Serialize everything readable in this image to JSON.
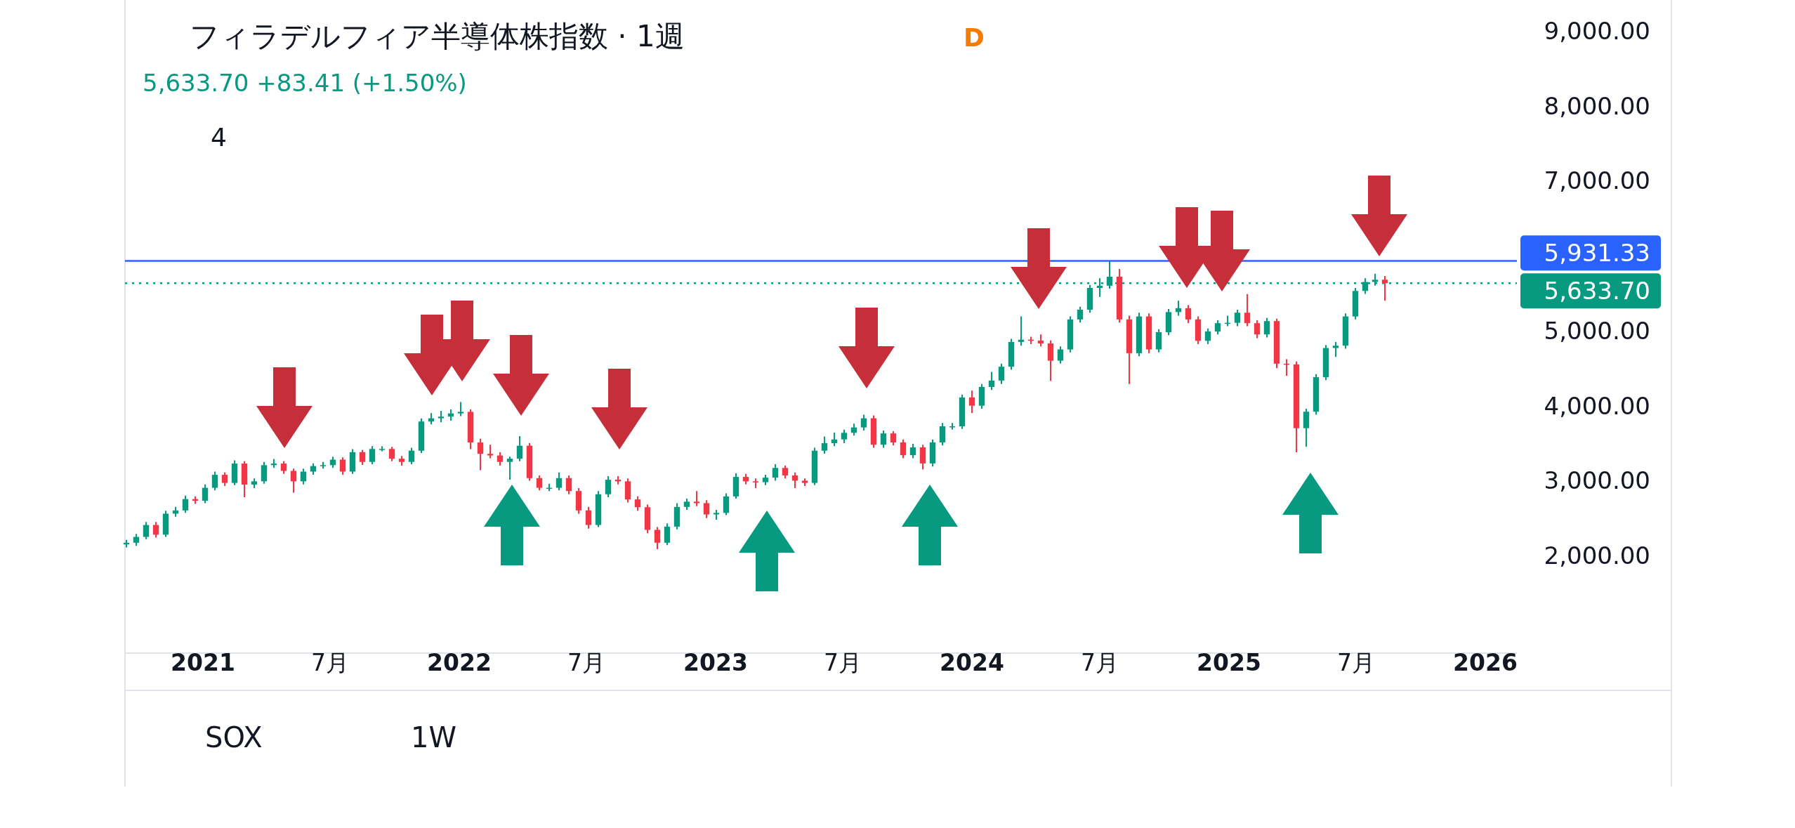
{
  "chart_data": {
    "type": "candlestick",
    "title": "フィラデルフィア半導体株指数 · 1週",
    "subtitle": "5,633.70 +83.41 (+1.50%)",
    "annotations": [
      "4",
      "D",
      "SOX",
      "1W"
    ],
    "x": [
      "2020-09-14",
      "2020-09-28",
      "2020-10-12",
      "2020-10-26",
      "2020-11-09",
      "2020-11-23",
      "2020-12-07",
      "2020-12-21",
      "2021-01-04",
      "2021-01-18",
      "2021-02-01",
      "2021-02-15",
      "2021-03-01",
      "2021-03-15",
      "2021-03-29",
      "2021-04-12",
      "2021-04-26",
      "2021-05-10",
      "2021-05-24",
      "2021-06-07",
      "2021-06-21",
      "2021-07-05",
      "2021-07-19",
      "2021-08-02",
      "2021-08-16",
      "2021-08-30",
      "2021-09-13",
      "2021-09-27",
      "2021-10-11",
      "2021-10-25",
      "2021-11-08",
      "2021-11-22",
      "2021-12-06",
      "2021-12-20",
      "2022-01-03",
      "2022-01-17",
      "2022-01-31",
      "2022-02-14",
      "2022-02-28",
      "2022-03-14",
      "2022-03-28",
      "2022-04-11",
      "2022-04-25",
      "2022-05-09",
      "2022-05-23",
      "2022-06-06",
      "2022-06-20",
      "2022-07-04",
      "2022-07-18",
      "2022-08-01",
      "2022-08-15",
      "2022-08-29",
      "2022-09-12",
      "2022-09-26",
      "2022-10-10",
      "2022-10-24",
      "2022-11-07",
      "2022-11-21",
      "2022-12-05",
      "2022-12-19",
      "2023-01-02",
      "2023-01-16",
      "2023-01-30",
      "2023-02-13",
      "2023-02-27",
      "2023-03-13",
      "2023-03-27",
      "2023-04-10",
      "2023-04-24",
      "2023-05-08",
      "2023-05-22",
      "2023-06-05",
      "2023-06-19",
      "2023-07-03",
      "2023-07-17",
      "2023-07-31",
      "2023-08-14",
      "2023-08-28",
      "2023-09-11",
      "2023-09-25",
      "2023-10-09",
      "2023-10-23",
      "2023-11-06",
      "2023-11-20",
      "2023-12-04",
      "2023-12-18",
      "2024-01-01",
      "2024-01-15",
      "2024-01-29",
      "2024-02-12",
      "2024-02-26",
      "2024-03-11",
      "2024-03-25",
      "2024-04-08",
      "2024-04-22",
      "2024-05-06",
      "2024-05-20",
      "2024-06-03",
      "2024-06-17",
      "2024-07-01",
      "2024-07-15",
      "2024-07-29",
      "2024-08-12",
      "2024-08-26",
      "2024-09-09",
      "2024-09-23",
      "2024-10-07",
      "2024-10-21",
      "2024-11-04",
      "2024-11-18",
      "2024-12-02",
      "2024-12-16",
      "2024-12-30",
      "2025-01-13",
      "2025-01-27",
      "2025-02-10",
      "2025-02-24",
      "2025-03-10",
      "2025-03-24",
      "2025-04-07",
      "2025-04-21",
      "2025-05-05",
      "2025-05-19",
      "2025-06-02",
      "2025-06-16",
      "2025-06-30",
      "2025-07-14",
      "2025-07-28",
      "2025-08-11"
    ],
    "ohlc": [
      [
        2150,
        2210,
        2110,
        2172
      ],
      [
        2172,
        2290,
        2130,
        2250
      ],
      [
        2250,
        2450,
        2220,
        2409
      ],
      [
        2409,
        2450,
        2240,
        2280
      ],
      [
        2280,
        2600,
        2250,
        2560
      ],
      [
        2560,
        2650,
        2520,
        2603
      ],
      [
        2603,
        2800,
        2570,
        2754
      ],
      [
        2754,
        2790,
        2690,
        2732
      ],
      [
        2732,
        2950,
        2700,
        2905
      ],
      [
        2905,
        3120,
        2870,
        3078
      ],
      [
        3078,
        3110,
        2930,
        2970
      ],
      [
        2970,
        3270,
        2940,
        3228
      ],
      [
        3228,
        3260,
        2780,
        2948
      ],
      [
        2948,
        3030,
        2900,
        2991
      ],
      [
        2991,
        3250,
        2960,
        3207
      ],
      [
        3207,
        3290,
        3170,
        3228
      ],
      [
        3228,
        3260,
        3090,
        3130
      ],
      [
        3130,
        3160,
        2840,
        2991
      ],
      [
        2991,
        3160,
        2950,
        3121
      ],
      [
        3121,
        3230,
        3080,
        3195
      ],
      [
        3195,
        3250,
        3160,
        3207
      ],
      [
        3207,
        3320,
        3170,
        3280
      ],
      [
        3280,
        3310,
        3080,
        3121
      ],
      [
        3121,
        3420,
        3090,
        3380
      ],
      [
        3380,
        3410,
        3210,
        3250
      ],
      [
        3250,
        3460,
        3220,
        3423
      ],
      [
        3423,
        3460,
        3390,
        3423
      ],
      [
        3423,
        3450,
        3260,
        3293
      ],
      [
        3293,
        3330,
        3200,
        3250
      ],
      [
        3250,
        3440,
        3220,
        3400
      ],
      [
        3400,
        3830,
        3370,
        3789
      ],
      [
        3789,
        3900,
        3750,
        3832
      ],
      [
        3832,
        3930,
        3780,
        3854
      ],
      [
        3854,
        3950,
        3800,
        3897
      ],
      [
        3897,
        4048,
        3860,
        3918
      ],
      [
        3918,
        3950,
        3420,
        3509
      ],
      [
        3509,
        3560,
        3140,
        3358
      ],
      [
        3358,
        3480,
        3300,
        3336
      ],
      [
        3336,
        3380,
        3200,
        3250
      ],
      [
        3250,
        3320,
        3013,
        3293
      ],
      [
        3293,
        3595,
        3260,
        3466
      ],
      [
        3466,
        3500,
        3000,
        3034
      ],
      [
        3034,
        3070,
        2870,
        2905
      ],
      [
        2905,
        2960,
        2860,
        2905
      ],
      [
        2905,
        3110,
        2870,
        3034
      ],
      [
        3034,
        3070,
        2820,
        2862
      ],
      [
        2862,
        2900,
        2560,
        2603
      ],
      [
        2603,
        2650,
        2360,
        2409
      ],
      [
        2409,
        2860,
        2380,
        2819
      ],
      [
        2819,
        3060,
        2780,
        3013
      ],
      [
        3013,
        3060,
        2950,
        2991
      ],
      [
        2991,
        3030,
        2710,
        2750
      ],
      [
        2750,
        2790,
        2600,
        2646
      ],
      [
        2646,
        2680,
        2300,
        2344
      ],
      [
        2344,
        2380,
        2085,
        2172
      ],
      [
        2172,
        2430,
        2140,
        2387
      ],
      [
        2387,
        2700,
        2350,
        2650
      ],
      [
        2650,
        2760,
        2610,
        2720
      ],
      [
        2720,
        2860,
        2660,
        2700
      ],
      [
        2700,
        2740,
        2500,
        2550
      ],
      [
        2550,
        2610,
        2480,
        2570
      ],
      [
        2570,
        2830,
        2540,
        2790
      ],
      [
        2790,
        3100,
        2760,
        3050
      ],
      [
        3050,
        3090,
        2950,
        2991
      ],
      [
        2991,
        3030,
        2900,
        2980
      ],
      [
        2980,
        3080,
        2940,
        3040
      ],
      [
        3040,
        3220,
        3000,
        3170
      ],
      [
        3170,
        3200,
        3030,
        3070
      ],
      [
        3070,
        3110,
        2900,
        3000
      ],
      [
        3000,
        3030,
        2930,
        2970
      ],
      [
        2970,
        3440,
        2940,
        3400
      ],
      [
        3400,
        3590,
        3360,
        3500
      ],
      [
        3500,
        3640,
        3460,
        3550
      ],
      [
        3550,
        3680,
        3500,
        3638
      ],
      [
        3638,
        3760,
        3600,
        3710
      ],
      [
        3710,
        3880,
        3670,
        3832
      ],
      [
        3832,
        3870,
        3440,
        3480
      ],
      [
        3480,
        3670,
        3440,
        3630
      ],
      [
        3630,
        3660,
        3470,
        3510
      ],
      [
        3510,
        3550,
        3300,
        3340
      ],
      [
        3340,
        3490,
        3300,
        3444
      ],
      [
        3444,
        3480,
        3150,
        3230
      ],
      [
        3230,
        3550,
        3190,
        3510
      ],
      [
        3510,
        3770,
        3470,
        3725
      ],
      [
        3725,
        3770,
        3680,
        3725
      ],
      [
        3725,
        4150,
        3690,
        4110
      ],
      [
        4110,
        4200,
        3900,
        4000
      ],
      [
        4000,
        4290,
        3960,
        4250
      ],
      [
        4250,
        4450,
        4210,
        4335
      ],
      [
        4335,
        4560,
        4290,
        4520
      ],
      [
        4520,
        4890,
        4480,
        4850
      ],
      [
        4850,
        5191,
        4800,
        4880
      ],
      [
        4880,
        4920,
        4820,
        4868
      ],
      [
        4868,
        4950,
        4790,
        4830
      ],
      [
        4830,
        4870,
        4329,
        4600
      ],
      [
        4600,
        4790,
        4560,
        4750
      ],
      [
        4750,
        5190,
        4710,
        5150
      ],
      [
        5150,
        5320,
        5110,
        5280
      ],
      [
        5280,
        5610,
        5240,
        5570
      ],
      [
        5570,
        5700,
        5450,
        5600
      ],
      [
        5600,
        5931,
        5560,
        5720
      ],
      [
        5720,
        5824,
        5110,
        5150
      ],
      [
        5150,
        5200,
        4290,
        4700
      ],
      [
        4700,
        5240,
        4660,
        5190
      ],
      [
        5190,
        5230,
        4700,
        4750
      ],
      [
        4750,
        5020,
        4710,
        4980
      ],
      [
        4980,
        5290,
        4940,
        5248
      ],
      [
        5248,
        5400,
        5200,
        5300
      ],
      [
        5300,
        5340,
        5100,
        5150
      ],
      [
        5150,
        5190,
        4820,
        4865
      ],
      [
        4865,
        5030,
        4820,
        4990
      ],
      [
        4990,
        5140,
        4950,
        5100
      ],
      [
        5100,
        5200,
        5060,
        5105
      ],
      [
        5105,
        5280,
        5060,
        5240
      ],
      [
        5240,
        5488,
        5060,
        5100
      ],
      [
        5100,
        5140,
        4900,
        4950
      ],
      [
        4950,
        5170,
        4910,
        5128
      ],
      [
        5128,
        5160,
        4500,
        4560
      ],
      [
        4560,
        4620,
        4400,
        4550
      ],
      [
        4550,
        4590,
        3379,
        3700
      ],
      [
        3700,
        3960,
        3450,
        3920
      ],
      [
        3920,
        4420,
        3880,
        4380
      ],
      [
        4380,
        4810,
        4340,
        4769
      ],
      [
        4769,
        4850,
        4650,
        4800
      ],
      [
        4800,
        5230,
        4760,
        5190
      ],
      [
        5190,
        5570,
        5150,
        5530
      ],
      [
        5530,
        5700,
        5490,
        5650
      ],
      [
        5650,
        5760,
        5600,
        5680
      ],
      [
        5680,
        5730,
        5400,
        5633.7
      ]
    ],
    "xlim": [
      "2020-09-12",
      "2026-02-15"
    ],
    "xticks": [
      {
        "value": "2021-01-01",
        "label": "2021"
      },
      {
        "value": "2021-07-01",
        "label": "7月"
      },
      {
        "value": "2022-01-01",
        "label": "2022"
      },
      {
        "value": "2022-07-01",
        "label": "7月"
      },
      {
        "value": "2023-01-01",
        "label": "2023"
      },
      {
        "value": "2023-07-01",
        "label": "7月"
      },
      {
        "value": "2024-01-01",
        "label": "2024"
      },
      {
        "value": "2024-07-01",
        "label": "7月"
      },
      {
        "value": "2025-01-01",
        "label": "2025"
      },
      {
        "value": "2025-07-01",
        "label": "7月"
      },
      {
        "value": "2026-01-01",
        "label": "2026"
      }
    ],
    "ylim": [
      700,
      9410
    ],
    "yticks": [
      {
        "value": 2000,
        "label": "2,000.00"
      },
      {
        "value": 3000,
        "label": "3,000.00"
      },
      {
        "value": 4000,
        "label": "4,000.00"
      },
      {
        "value": 5000,
        "label": "5,000.00"
      },
      {
        "value": 7000,
        "label": "7,000.00"
      },
      {
        "value": 8000,
        "label": "8,000.00"
      },
      {
        "value": 9000,
        "label": "9,000.00"
      }
    ],
    "ref_lines": [
      {
        "axis": "y",
        "value": 5931.33,
        "label": "5,931.33",
        "color": "#2962ff",
        "line_style": "solid"
      },
      {
        "axis": "y",
        "value": 5633.7,
        "label": "5,633.70",
        "color": "#089981",
        "line_style": "dotted"
      }
    ]
  }
}
